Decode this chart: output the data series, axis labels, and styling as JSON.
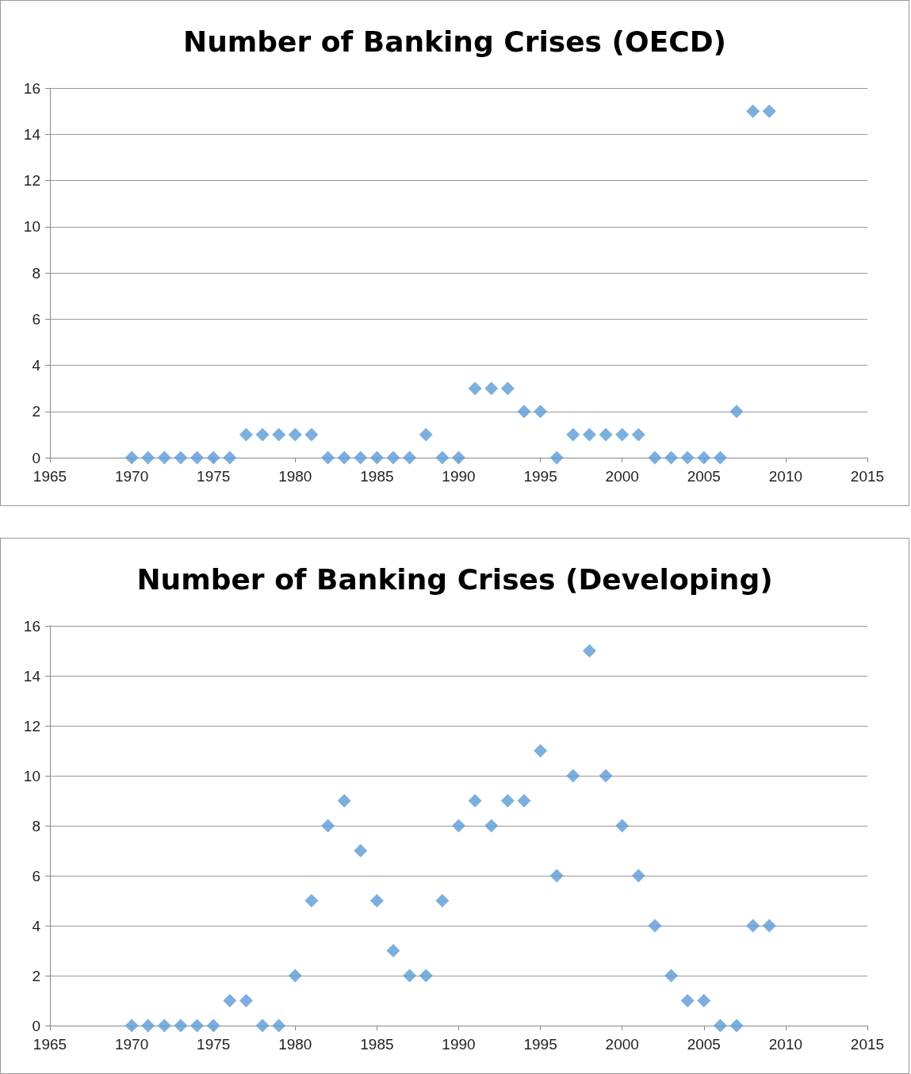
{
  "chart_data": [
    {
      "type": "scatter",
      "title": "Number of Banking Crises (OECD)",
      "x": [
        1970,
        1971,
        1972,
        1973,
        1974,
        1975,
        1976,
        1977,
        1978,
        1979,
        1980,
        1981,
        1982,
        1983,
        1984,
        1985,
        1986,
        1987,
        1988,
        1989,
        1990,
        1991,
        1992,
        1993,
        1994,
        1995,
        1996,
        1997,
        1998,
        1999,
        2000,
        2001,
        2002,
        2003,
        2004,
        2005,
        2006,
        2007,
        2008,
        2009
      ],
      "series": [
        {
          "color": "#5b9bd5",
          "values": [
            0,
            0,
            0,
            0,
            0,
            0,
            0,
            1,
            1,
            1,
            1,
            1,
            0,
            0,
            0,
            0,
            0,
            0,
            1,
            0,
            0,
            3,
            3,
            3,
            2,
            2,
            0,
            1,
            1,
            1,
            1,
            1,
            0,
            0,
            0,
            0,
            0,
            2,
            15,
            15
          ]
        }
      ],
      "xlim": [
        1965,
        2015
      ],
      "xticks": [
        1965,
        1970,
        1975,
        1980,
        1985,
        1990,
        1995,
        2000,
        2005,
        2010,
        2015
      ],
      "ylim": [
        0,
        16
      ],
      "yticks": [
        0,
        2,
        4,
        6,
        8,
        10,
        12,
        14,
        16
      ],
      "grid": "y",
      "marker": "diamond"
    },
    {
      "type": "scatter",
      "title": "Number of Banking Crises (Developing)",
      "x": [
        1970,
        1971,
        1972,
        1973,
        1974,
        1975,
        1976,
        1977,
        1978,
        1979,
        1980,
        1981,
        1982,
        1983,
        1984,
        1985,
        1986,
        1987,
        1988,
        1989,
        1990,
        1991,
        1992,
        1993,
        1994,
        1995,
        1996,
        1997,
        1998,
        1999,
        2000,
        2001,
        2002,
        2003,
        2004,
        2005,
        2006,
        2007,
        2008,
        2009
      ],
      "series": [
        {
          "color": "#5b9bd5",
          "values": [
            0,
            0,
            0,
            0,
            0,
            0,
            1,
            1,
            0,
            0,
            2,
            5,
            8,
            9,
            7,
            5,
            3,
            2,
            2,
            5,
            8,
            9,
            8,
            9,
            9,
            11,
            6,
            10,
            15,
            10,
            8,
            6,
            4,
            2,
            1,
            1,
            0,
            0,
            4,
            4
          ]
        }
      ],
      "xlim": [
        1965,
        2015
      ],
      "xticks": [
        1965,
        1970,
        1975,
        1980,
        1985,
        1990,
        1995,
        2000,
        2005,
        2010,
        2015
      ],
      "ylim": [
        0,
        16
      ],
      "yticks": [
        0,
        2,
        4,
        6,
        8,
        10,
        12,
        14,
        16
      ],
      "grid": "y",
      "marker": "diamond"
    }
  ]
}
